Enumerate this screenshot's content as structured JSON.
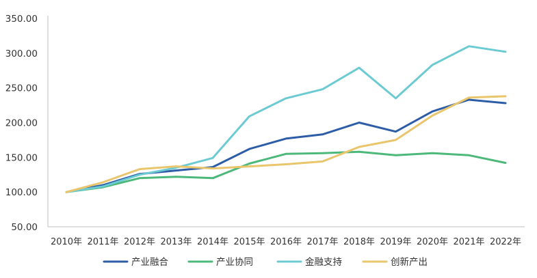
{
  "chart_data": {
    "type": "line",
    "title": "",
    "xlabel": "",
    "ylabel": "",
    "categories": [
      "2010年",
      "2011年",
      "2012年",
      "2013年",
      "2014年",
      "2015年",
      "2016年",
      "2017年",
      "2018年",
      "2019年",
      "2020年",
      "2021年",
      "2022年"
    ],
    "ylim": [
      50,
      350
    ],
    "yticks": [
      "50.00",
      "100.00",
      "150.00",
      "200.00",
      "250.00",
      "300.00",
      "350.00"
    ],
    "ytick_values": [
      50,
      100,
      150,
      200,
      250,
      300,
      350
    ],
    "grid": false,
    "legend_position": "bottom",
    "series": [
      {
        "name": "产业融合",
        "color": "#2E5DA8",
        "values": [
          100,
          110,
          126,
          131,
          136,
          162,
          177,
          183,
          200,
          187,
          216,
          233,
          228
        ]
      },
      {
        "name": "产业协同",
        "color": "#4CB87A",
        "values": [
          100,
          107,
          120,
          122,
          120,
          141,
          155,
          156,
          158,
          153,
          156,
          153,
          142
        ]
      },
      {
        "name": "金融支持",
        "color": "#6CCAD3",
        "values": [
          100,
          108,
          125,
          135,
          149,
          209,
          235,
          248,
          279,
          235,
          283,
          310,
          302
        ]
      },
      {
        "name": "创新产出",
        "color": "#E9C56C",
        "values": [
          100,
          114,
          133,
          137,
          134,
          137,
          140,
          144,
          165,
          175,
          210,
          236,
          238
        ]
      }
    ]
  }
}
